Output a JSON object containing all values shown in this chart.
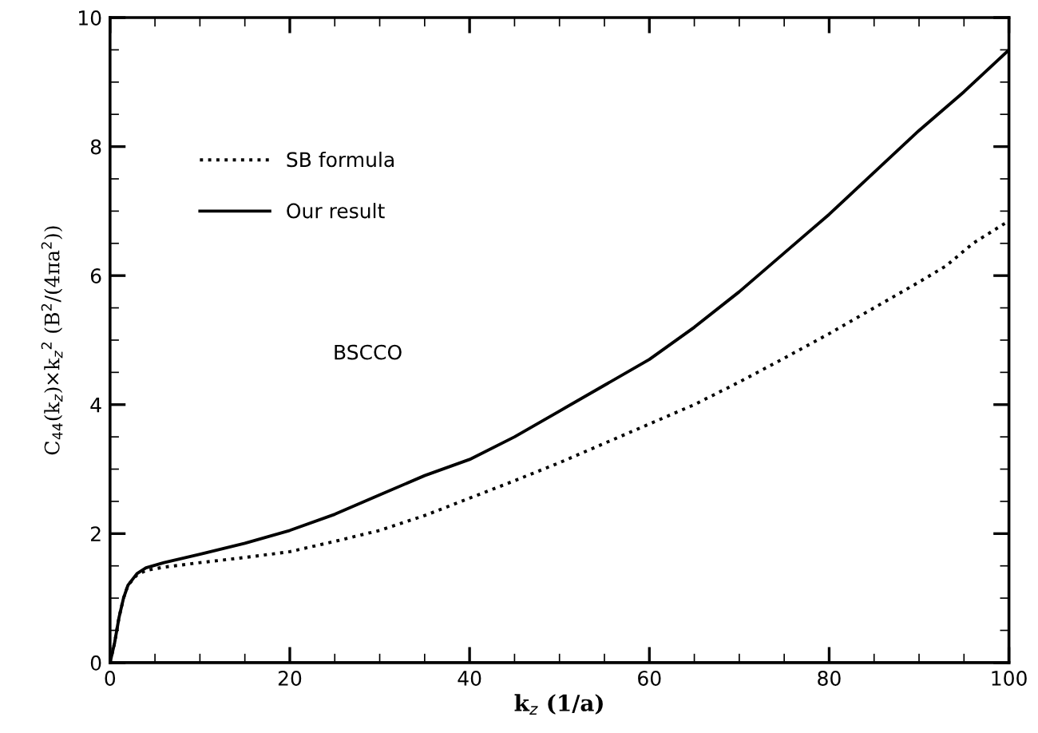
{
  "chart_data": {
    "type": "line",
    "xlabel": "k$_{z}$ (1/a)",
    "ylabel": "C$_{44}$(k$_{z}$)×k$_{z}$$^{2}$ (B$^{2}$/(4πa$^{2}$))",
    "xlim": [
      0,
      100
    ],
    "ylim": [
      0,
      10
    ],
    "xticks": [
      0,
      20,
      40,
      60,
      80,
      100
    ],
    "yticks": [
      0,
      2,
      4,
      6,
      8,
      10
    ],
    "legend": "top left",
    "grid": false,
    "annotations": [
      "BSCCO"
    ],
    "series": [
      {
        "name": "SB formula",
        "color": "#000000",
        "line_style": "dotted",
        "x": [
          0,
          0.5,
          1,
          1.5,
          2,
          3,
          4,
          6,
          10,
          15,
          20,
          25,
          30,
          35,
          40,
          45,
          50,
          55,
          60,
          65,
          70,
          75,
          80,
          85,
          90,
          93,
          96,
          100
        ],
        "values": [
          0,
          0.3,
          0.7,
          1.0,
          1.2,
          1.36,
          1.43,
          1.48,
          1.55,
          1.63,
          1.72,
          1.88,
          2.05,
          2.28,
          2.55,
          2.82,
          3.1,
          3.4,
          3.7,
          4.0,
          4.35,
          4.72,
          5.1,
          5.5,
          5.9,
          6.15,
          6.5,
          6.85
        ]
      },
      {
        "name": "Our result",
        "color": "#000000",
        "line_style": "solid",
        "x": [
          0,
          0.5,
          1,
          1.5,
          2,
          3,
          4,
          6,
          10,
          15,
          20,
          25,
          30,
          35,
          40,
          45,
          50,
          55,
          60,
          65,
          70,
          75,
          80,
          85,
          90,
          95,
          100
        ],
        "values": [
          0,
          0.3,
          0.7,
          1.0,
          1.2,
          1.38,
          1.47,
          1.55,
          1.68,
          1.85,
          2.05,
          2.3,
          2.6,
          2.9,
          3.15,
          3.5,
          3.9,
          4.3,
          4.7,
          5.2,
          5.75,
          6.35,
          6.95,
          7.6,
          8.25,
          8.85,
          9.5
        ]
      }
    ]
  }
}
